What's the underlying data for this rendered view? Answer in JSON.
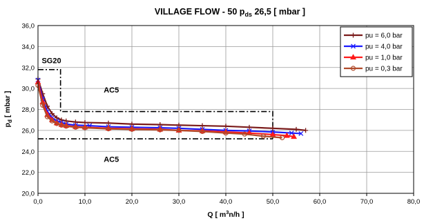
{
  "chart_data": {
    "type": "line",
    "title": {
      "main": "VILLAGE FLOW - 50  p",
      "sub": "ds",
      "tail": " 26,5 [ mbar ]"
    },
    "xlabel": {
      "main": "Q [ m",
      "sup": "3",
      "tail": "n/h ]"
    },
    "ylabel": {
      "main": "p",
      "sub": "d",
      "tail": " [ mbar ]"
    },
    "xlim": [
      0,
      80
    ],
    "ylim": [
      20,
      36
    ],
    "x_ticks": [
      "0,0",
      "10,0",
      "20,0",
      "30,0",
      "40,0",
      "50,0",
      "60,0",
      "70,0",
      "80,0"
    ],
    "y_ticks": [
      "20,0",
      "22,0",
      "24,0",
      "26,0",
      "28,0",
      "30,0",
      "32,0",
      "34,0",
      "36,0"
    ],
    "grid": true,
    "legend_position": "top-right",
    "series": [
      {
        "name": "pu = 6,0 bar",
        "color": "#7a1a1a",
        "marker": "plus",
        "x": [
          0,
          1,
          2,
          3,
          4,
          5,
          6,
          8,
          10,
          15,
          20,
          26,
          30,
          35,
          40,
          45,
          50,
          55,
          57
        ],
        "y": [
          30.9,
          29.5,
          28.3,
          27.6,
          27.2,
          27.0,
          26.9,
          26.8,
          26.75,
          26.7,
          26.6,
          26.55,
          26.5,
          26.45,
          26.4,
          26.3,
          26.2,
          26.1,
          26.0
        ]
      },
      {
        "name": "pu = 4,0 bar",
        "color": "#1a1aff",
        "marker": "x",
        "x": [
          0,
          1,
          2,
          3,
          4,
          5,
          6,
          8,
          11,
          15,
          20,
          26,
          30,
          35,
          40,
          45,
          50,
          54,
          56
        ],
        "y": [
          30.8,
          29.0,
          27.8,
          27.2,
          26.9,
          26.75,
          26.6,
          26.5,
          26.45,
          26.35,
          26.3,
          26.25,
          26.2,
          26.1,
          26.0,
          25.95,
          25.85,
          25.75,
          25.7
        ]
      },
      {
        "name": "pu = 1,0 bar",
        "color": "#ff1a1a",
        "marker": "triangle",
        "x": [
          0,
          1,
          2,
          3,
          4,
          5,
          6,
          8,
          10,
          15,
          20,
          26,
          30,
          35,
          40,
          45,
          50,
          53,
          54.5
        ],
        "y": [
          30.6,
          28.7,
          27.5,
          27.0,
          26.7,
          26.55,
          26.45,
          26.35,
          26.3,
          26.2,
          26.15,
          26.1,
          26.0,
          25.95,
          25.85,
          25.75,
          25.6,
          25.5,
          25.4
        ]
      },
      {
        "name": "pu = 0,3 bar",
        "color": "#b04a2a",
        "marker": "circle",
        "x": [
          0,
          1,
          2,
          3,
          4,
          5,
          6,
          8,
          10,
          15,
          20,
          26,
          30,
          35,
          40,
          44,
          48,
          52
        ],
        "y": [
          30.3,
          28.4,
          27.3,
          26.9,
          26.65,
          26.5,
          26.4,
          26.3,
          26.25,
          26.15,
          26.1,
          26.05,
          26.0,
          25.9,
          25.75,
          25.65,
          25.45,
          25.3
        ]
      }
    ],
    "limit_lines": [
      {
        "points": [
          [
            0,
            31.8
          ],
          [
            4.8,
            31.8
          ],
          [
            4.8,
            27.8
          ],
          [
            50,
            27.8
          ],
          [
            50,
            25.2
          ]
        ]
      },
      {
        "points": [
          [
            0,
            25.2
          ],
          [
            50,
            25.2
          ]
        ]
      }
    ],
    "annotations": [
      {
        "text": "SG20",
        "x": 0.8,
        "y": 32.4
      },
      {
        "text": "AC5",
        "x": 14,
        "y": 29.6
      },
      {
        "text": "AC5",
        "x": 14,
        "y": 23.0
      }
    ]
  }
}
